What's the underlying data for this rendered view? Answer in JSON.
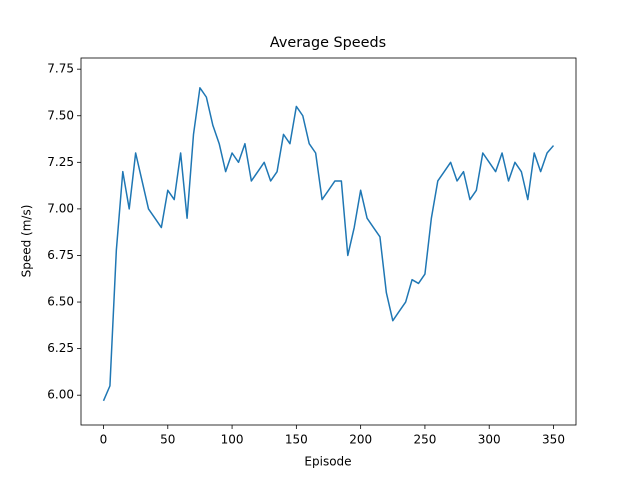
{
  "chart_data": {
    "type": "line",
    "title": "Average Speeds",
    "x_label": "Episode",
    "y_label": "Speed (m/s)",
    "x": [
      0,
      5,
      10,
      15,
      20,
      25,
      30,
      35,
      40,
      45,
      50,
      55,
      60,
      65,
      70,
      75,
      80,
      85,
      90,
      95,
      100,
      105,
      110,
      115,
      120,
      125,
      130,
      135,
      140,
      145,
      150,
      155,
      160,
      165,
      170,
      175,
      180,
      185,
      190,
      195,
      200,
      205,
      210,
      215,
      220,
      225,
      230,
      235,
      240,
      245,
      250,
      255,
      260,
      265,
      270,
      275,
      280,
      285,
      290,
      295,
      300,
      305,
      310,
      315,
      320,
      325,
      330,
      335,
      340,
      345,
      350
    ],
    "series": [
      {
        "name": "Average Speed",
        "color": "#1f77b4",
        "values": [
          5.97,
          6.05,
          6.78,
          7.2,
          7.0,
          7.3,
          7.15,
          7.0,
          6.95,
          6.9,
          7.1,
          7.05,
          7.3,
          6.95,
          7.4,
          7.65,
          7.6,
          7.45,
          7.35,
          7.2,
          7.3,
          7.25,
          7.35,
          7.15,
          7.2,
          7.25,
          7.15,
          7.2,
          7.4,
          7.35,
          7.55,
          7.5,
          7.35,
          7.3,
          7.05,
          7.1,
          7.15,
          7.15,
          6.75,
          6.9,
          7.1,
          6.95,
          6.9,
          6.85,
          6.55,
          6.4,
          6.45,
          6.5,
          6.62,
          6.6,
          6.65,
          6.95,
          7.15,
          7.2,
          7.25,
          7.15,
          7.2,
          7.05,
          7.1,
          7.3,
          7.25,
          7.2,
          7.3,
          7.15,
          7.25,
          7.2,
          7.05,
          7.3,
          7.2,
          7.3,
          7.34
        ]
      }
    ],
    "xlim": [
      -17.5,
      367.5
    ],
    "ylim": [
      5.84,
      7.81
    ],
    "xticks": [
      0,
      50,
      100,
      150,
      200,
      250,
      300,
      350
    ],
    "yticks": [
      {
        "value": 6,
        "label": "6.00"
      },
      6.25,
      {
        "value": 6.5,
        "label": "6.50"
      },
      6.75,
      {
        "value": 7,
        "label": "7.00"
      },
      7.25,
      {
        "value": 7.5,
        "label": "7.50"
      },
      7.75
    ],
    "grid": false
  }
}
